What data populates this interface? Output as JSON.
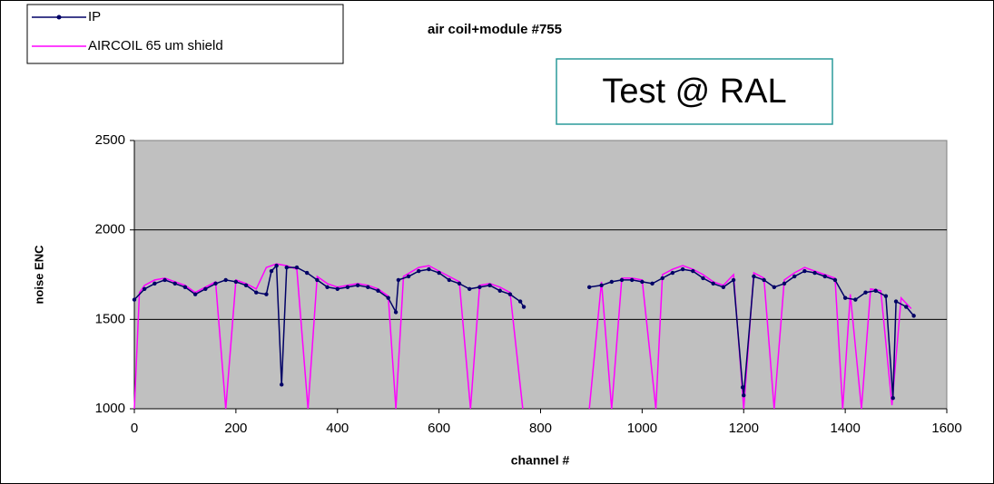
{
  "chart_data": {
    "type": "line",
    "title": "air coil+module #755",
    "annotation": "Test @ RAL",
    "xlabel": "channel #",
    "ylabel": "noise ENC",
    "xlim": [
      0,
      1600
    ],
    "xticks": [
      0,
      200,
      400,
      600,
      800,
      1000,
      1200,
      1400,
      1600
    ],
    "ylim": [
      1000,
      2500
    ],
    "yticks": [
      1000,
      1500,
      2000,
      2500
    ],
    "grid": true,
    "legend": "upper left",
    "series": [
      {
        "name": "AIRCOIL 65 um shield",
        "color": "#ff00ff",
        "markers": false,
        "x": [
          0,
          10,
          20,
          40,
          60,
          80,
          100,
          120,
          140,
          160,
          180,
          200,
          220,
          240,
          260,
          280,
          300,
          320,
          342,
          360,
          380,
          400,
          420,
          440,
          460,
          480,
          500,
          515,
          530,
          560,
          580,
          600,
          620,
          640,
          662,
          680,
          700,
          720,
          740,
          765,
          830,
          896,
          920,
          940,
          960,
          980,
          1000,
          1027,
          1040,
          1060,
          1080,
          1100,
          1120,
          1140,
          1160,
          1180,
          1200,
          1220,
          1240,
          1260,
          1280,
          1300,
          1320,
          1340,
          1360,
          1380,
          1395,
          1410,
          1432,
          1450,
          1470,
          1492,
          1510,
          1530
        ],
        "values": [
          1000,
          1650,
          1690,
          1720,
          1730,
          1710,
          1690,
          1650,
          1680,
          1710,
          1000,
          1720,
          1700,
          1670,
          1790,
          1810,
          1800,
          1780,
          1000,
          1740,
          1700,
          1680,
          1690,
          1700,
          1690,
          1670,
          1630,
          1000,
          1740,
          1790,
          1800,
          1770,
          1740,
          1710,
          1000,
          1690,
          1700,
          1680,
          1650,
          1000,
          null,
          1000,
          1710,
          1000,
          1730,
          1730,
          1720,
          1000,
          1750,
          1780,
          1800,
          1780,
          1750,
          1710,
          1690,
          1750,
          1000,
          1760,
          1730,
          1000,
          1720,
          1760,
          1790,
          1770,
          1750,
          1730,
          1000,
          1640,
          1000,
          1670,
          1660,
          1020,
          1620,
          1560
        ]
      },
      {
        "name": "IP",
        "color": "#000066",
        "markers": true,
        "x": [
          0,
          20,
          40,
          60,
          80,
          100,
          120,
          140,
          160,
          180,
          200,
          220,
          240,
          260,
          270,
          280,
          290,
          300,
          320,
          340,
          360,
          380,
          400,
          420,
          440,
          460,
          480,
          500,
          515,
          520,
          540,
          560,
          580,
          600,
          620,
          640,
          660,
          680,
          700,
          720,
          740,
          760,
          767,
          830,
          896,
          920,
          940,
          960,
          980,
          1000,
          1020,
          1040,
          1060,
          1080,
          1100,
          1120,
          1140,
          1160,
          1180,
          1198,
          1200,
          1220,
          1240,
          1260,
          1280,
          1300,
          1320,
          1340,
          1360,
          1380,
          1400,
          1420,
          1440,
          1460,
          1480,
          1494,
          1500,
          1520,
          1535
        ],
        "values": [
          1610,
          1670,
          1700,
          1720,
          1700,
          1680,
          1640,
          1670,
          1700,
          1720,
          1710,
          1690,
          1650,
          1640,
          1770,
          1800,
          1135,
          1790,
          1790,
          1760,
          1720,
          1680,
          1670,
          1680,
          1690,
          1680,
          1660,
          1620,
          1540,
          1720,
          1740,
          1770,
          1780,
          1760,
          1720,
          1700,
          1670,
          1680,
          1690,
          1660,
          1640,
          1600,
          1570,
          null,
          1680,
          1690,
          1710,
          1720,
          1720,
          1710,
          1700,
          1730,
          1760,
          1780,
          1770,
          1730,
          1700,
          1680,
          1720,
          1120,
          1075,
          1740,
          1720,
          1680,
          1700,
          1740,
          1770,
          1760,
          1740,
          1720,
          1620,
          1610,
          1650,
          1660,
          1630,
          1060,
          1600,
          1570,
          1520
        ]
      }
    ]
  }
}
